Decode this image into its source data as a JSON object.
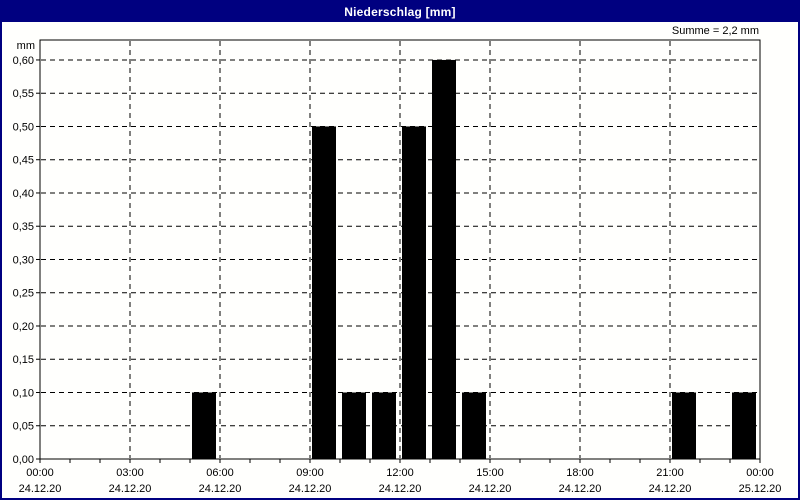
{
  "window": {
    "title": "Niederschlag [mm]"
  },
  "colors": {
    "titlebar_bg": "#000080",
    "titlebar_text": "#ffffff",
    "frame": "#000000",
    "grid": "#000000",
    "bar": "#000000",
    "background": "#fffffd",
    "text": "#000000"
  },
  "chart_data": {
    "type": "bar",
    "title": "Niederschlag [mm]",
    "summary": "Summe = 2,2 mm",
    "xlabel": "",
    "ylabel": "mm",
    "grid": {
      "style": "dashed",
      "horizontal": true,
      "vertical": true
    },
    "bars": [
      {
        "hour": 5,
        "value": 0.1
      },
      {
        "hour": 9,
        "value": 0.5
      },
      {
        "hour": 10,
        "value": 0.1
      },
      {
        "hour": 11,
        "value": 0.1
      },
      {
        "hour": 12,
        "value": 0.5
      },
      {
        "hour": 13,
        "value": 0.6
      },
      {
        "hour": 14,
        "value": 0.1
      },
      {
        "hour": 21,
        "value": 0.1
      },
      {
        "hour": 23,
        "value": 0.1
      }
    ],
    "x_axis": {
      "hours_total": 24,
      "minor_tick_hours": 1,
      "major_tick_hours": 3,
      "ticks": [
        {
          "hour": 0,
          "time": "00:00",
          "date": "24.12.20"
        },
        {
          "hour": 3,
          "time": "03:00",
          "date": "24.12.20"
        },
        {
          "hour": 6,
          "time": "06:00",
          "date": "24.12.20"
        },
        {
          "hour": 9,
          "time": "09:00",
          "date": "24.12.20"
        },
        {
          "hour": 12,
          "time": "12:00",
          "date": "24.12.20"
        },
        {
          "hour": 15,
          "time": "15:00",
          "date": "24.12.20"
        },
        {
          "hour": 18,
          "time": "18:00",
          "date": "24.12.20"
        },
        {
          "hour": 21,
          "time": "21:00",
          "date": "24.12.20"
        },
        {
          "hour": 24,
          "time": "00:00",
          "date": "25.12.20"
        }
      ]
    },
    "y_axis": {
      "unit": "mm",
      "min": 0,
      "max": 0.63,
      "tick_step": 0.05,
      "tick_labels": [
        "0,00",
        "0,05",
        "0,10",
        "0,15",
        "0,20",
        "0,25",
        "0,30",
        "0,35",
        "0,40",
        "0,45",
        "0,50",
        "0,55",
        "0,60"
      ]
    }
  }
}
